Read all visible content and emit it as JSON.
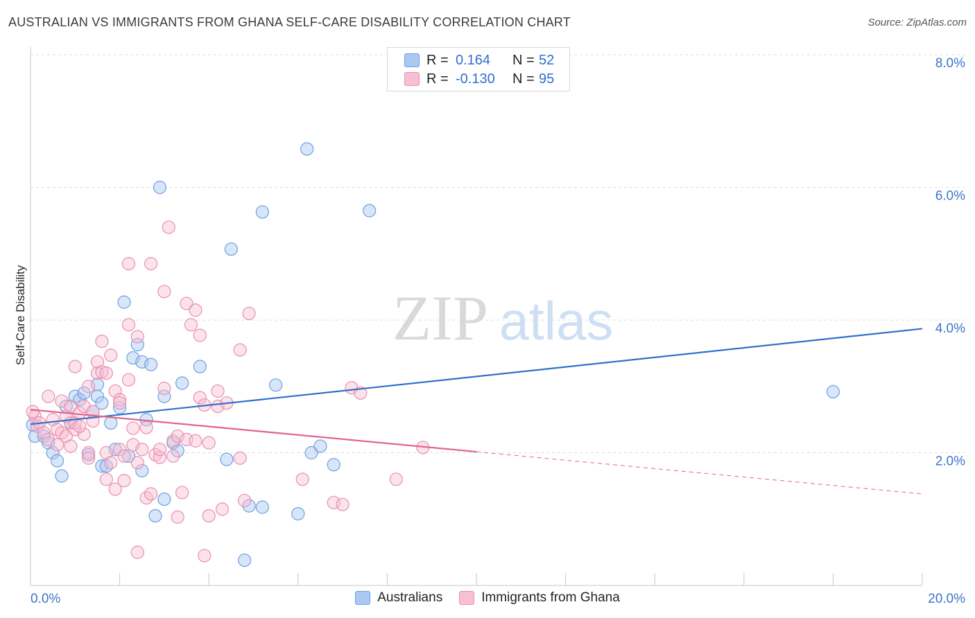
{
  "title": "AUSTRALIAN VS IMMIGRANTS FROM GHANA SELF-CARE DISABILITY CORRELATION CHART",
  "source": "Source: ZipAtlas.com",
  "watermark": {
    "zip": "ZIP",
    "atlas": "atlas"
  },
  "legend": {
    "rows": [
      {
        "r_label": "R =",
        "r_value": "0.164",
        "n_label": "N =",
        "n_value": "52",
        "color": "#a9c8f2",
        "border": "#6e9fe0"
      },
      {
        "r_label": "R =",
        "r_value": "-0.130",
        "n_label": "N =",
        "n_value": "95",
        "color": "#f7bfd2",
        "border": "#e98fb0"
      }
    ]
  },
  "bottom_legend": [
    {
      "label": "Australians",
      "color": "#a9c8f2",
      "border": "#6e9fe0"
    },
    {
      "label": "Immigrants from Ghana",
      "color": "#f7bfd2",
      "border": "#e98fb0"
    }
  ],
  "chart_data": {
    "type": "scatter",
    "title": "AUSTRALIAN VS IMMIGRANTS FROM GHANA SELF-CARE DISABILITY CORRELATION CHART",
    "xlabel": "",
    "ylabel": "Self-Care Disability",
    "xlim": [
      0,
      20
    ],
    "ylim": [
      0,
      8
    ],
    "x_tick_labels": [
      "0.0%",
      "20.0%"
    ],
    "y_ticks": [
      2,
      4,
      6,
      8
    ],
    "y_tick_labels": [
      "2.0%",
      "4.0%",
      "6.0%",
      "8.0%"
    ],
    "grid": true,
    "series": [
      {
        "name": "Australians",
        "color": "#6e9fe0",
        "fill": "#a9c8f2",
        "line_color": "#2f6fca",
        "trend": {
          "x": [
            0,
            20
          ],
          "y": [
            2.43,
            3.87
          ],
          "dashed_from": null
        },
        "points": [
          [
            0.1,
            2.25
          ],
          [
            0.3,
            2.25
          ],
          [
            0.4,
            2.15
          ],
          [
            0.5,
            2.0
          ],
          [
            0.6,
            1.88
          ],
          [
            0.7,
            1.65
          ],
          [
            0.8,
            2.7
          ],
          [
            0.9,
            2.45
          ],
          [
            1.0,
            2.85
          ],
          [
            1.1,
            2.8
          ],
          [
            1.2,
            2.9
          ],
          [
            1.3,
            1.97
          ],
          [
            1.4,
            2.62
          ],
          [
            1.5,
            3.03
          ],
          [
            1.5,
            2.85
          ],
          [
            1.6,
            2.75
          ],
          [
            1.6,
            1.8
          ],
          [
            1.7,
            1.8
          ],
          [
            1.8,
            2.45
          ],
          [
            1.9,
            2.05
          ],
          [
            2.0,
            2.68
          ],
          [
            2.1,
            4.27
          ],
          [
            2.2,
            1.95
          ],
          [
            2.3,
            3.43
          ],
          [
            2.4,
            3.63
          ],
          [
            2.5,
            3.37
          ],
          [
            2.5,
            1.73
          ],
          [
            2.6,
            2.5
          ],
          [
            2.7,
            3.33
          ],
          [
            2.8,
            1.05
          ],
          [
            2.9,
            6.0
          ],
          [
            3.0,
            1.3
          ],
          [
            3.0,
            2.85
          ],
          [
            3.2,
            2.15
          ],
          [
            3.3,
            2.03
          ],
          [
            3.4,
            3.05
          ],
          [
            3.8,
            3.3
          ],
          [
            4.4,
            1.9
          ],
          [
            4.5,
            5.07
          ],
          [
            4.8,
            0.38
          ],
          [
            4.9,
            1.2
          ],
          [
            5.2,
            1.18
          ],
          [
            5.2,
            5.63
          ],
          [
            5.5,
            3.02
          ],
          [
            6.0,
            1.08
          ],
          [
            6.2,
            6.58
          ],
          [
            6.3,
            2.0
          ],
          [
            6.5,
            2.1
          ],
          [
            6.8,
            1.82
          ],
          [
            7.6,
            5.65
          ],
          [
            18.0,
            2.92
          ],
          [
            0.05,
            2.42
          ]
        ]
      },
      {
        "name": "Immigrants from Ghana",
        "color": "#e98fb0",
        "fill": "#f7bfd2",
        "line_color": "#e0648f",
        "trend": {
          "x": [
            0,
            20
          ],
          "y": [
            2.65,
            1.38
          ],
          "dashed_from": 10
        },
        "points": [
          [
            0.1,
            2.55
          ],
          [
            0.15,
            2.4
          ],
          [
            0.2,
            2.45
          ],
          [
            0.3,
            2.3
          ],
          [
            0.4,
            2.85
          ],
          [
            0.4,
            2.2
          ],
          [
            0.5,
            2.5
          ],
          [
            0.6,
            2.35
          ],
          [
            0.6,
            2.12
          ],
          [
            0.7,
            2.78
          ],
          [
            0.7,
            2.3
          ],
          [
            0.8,
            2.55
          ],
          [
            0.8,
            2.25
          ],
          [
            0.9,
            2.7
          ],
          [
            0.9,
            2.45
          ],
          [
            0.9,
            2.1
          ],
          [
            1.0,
            3.3
          ],
          [
            1.0,
            2.35
          ],
          [
            1.0,
            2.45
          ],
          [
            1.1,
            2.6
          ],
          [
            1.2,
            2.28
          ],
          [
            1.2,
            2.7
          ],
          [
            1.3,
            3.0
          ],
          [
            1.3,
            2.0
          ],
          [
            1.3,
            1.92
          ],
          [
            1.4,
            2.48
          ],
          [
            1.4,
            2.62
          ],
          [
            1.5,
            3.2
          ],
          [
            1.5,
            3.37
          ],
          [
            1.6,
            3.68
          ],
          [
            1.6,
            3.22
          ],
          [
            1.7,
            3.2
          ],
          [
            1.7,
            2.0
          ],
          [
            1.7,
            1.6
          ],
          [
            1.8,
            3.47
          ],
          [
            1.8,
            1.85
          ],
          [
            1.9,
            2.93
          ],
          [
            1.9,
            1.45
          ],
          [
            2.0,
            2.8
          ],
          [
            2.0,
            2.75
          ],
          [
            2.0,
            2.05
          ],
          [
            2.1,
            1.58
          ],
          [
            2.1,
            1.95
          ],
          [
            2.2,
            4.85
          ],
          [
            2.2,
            3.93
          ],
          [
            2.2,
            3.1
          ],
          [
            2.3,
            2.12
          ],
          [
            2.3,
            2.37
          ],
          [
            2.4,
            3.75
          ],
          [
            2.4,
            1.85
          ],
          [
            2.4,
            0.5
          ],
          [
            2.5,
            2.05
          ],
          [
            2.6,
            1.32
          ],
          [
            2.6,
            2.38
          ],
          [
            2.7,
            1.38
          ],
          [
            2.7,
            4.85
          ],
          [
            2.8,
            1.97
          ],
          [
            2.9,
            1.93
          ],
          [
            2.9,
            2.05
          ],
          [
            3.0,
            4.43
          ],
          [
            3.0,
            2.97
          ],
          [
            3.1,
            5.4
          ],
          [
            3.2,
            1.95
          ],
          [
            3.2,
            2.18
          ],
          [
            3.3,
            2.25
          ],
          [
            3.3,
            1.03
          ],
          [
            3.4,
            1.4
          ],
          [
            3.5,
            2.2
          ],
          [
            3.5,
            4.25
          ],
          [
            3.6,
            3.93
          ],
          [
            3.7,
            4.15
          ],
          [
            3.7,
            2.18
          ],
          [
            3.8,
            3.77
          ],
          [
            3.8,
            2.83
          ],
          [
            3.9,
            2.72
          ],
          [
            3.9,
            0.45
          ],
          [
            4.0,
            1.05
          ],
          [
            4.0,
            2.15
          ],
          [
            4.2,
            2.93
          ],
          [
            4.2,
            2.7
          ],
          [
            4.3,
            1.15
          ],
          [
            4.4,
            2.75
          ],
          [
            4.7,
            3.55
          ],
          [
            4.7,
            1.92
          ],
          [
            4.8,
            1.28
          ],
          [
            4.9,
            4.1
          ],
          [
            6.1,
            1.6
          ],
          [
            6.8,
            1.25
          ],
          [
            7.0,
            1.22
          ],
          [
            7.2,
            2.98
          ],
          [
            7.4,
            2.9
          ],
          [
            8.2,
            1.6
          ],
          [
            8.8,
            2.08
          ],
          [
            0.05,
            2.62
          ],
          [
            1.1,
            2.4
          ]
        ]
      }
    ]
  }
}
